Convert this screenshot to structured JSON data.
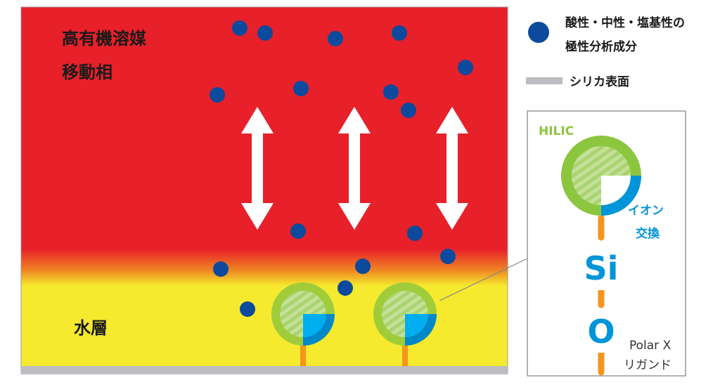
{
  "labels": {
    "organic_line1": "高有機溶媒",
    "organic_line2": "移動相",
    "water_layer": "水層",
    "legend_analyte_line1": "酸性・中性・塩基性の",
    "legend_analyte_line2": "極性分析成分",
    "legend_silica": "シリカ表面",
    "hilic": "HILIC",
    "ion_exchange_line1": "イオン",
    "ion_exchange_line2": "交換",
    "si": "Si",
    "o": "O",
    "ligand_line1": "Polar X",
    "ligand_line2": "リガンド"
  },
  "colors": {
    "mobile_phase": "#e8202a",
    "water_layer": "#f5ea2e",
    "analyte": "#0b4a9c",
    "silica": "#bcbdc0",
    "hilic": "#8cc63f",
    "ion_exchange": "#0095d8",
    "stem": "#f7941d"
  }
}
